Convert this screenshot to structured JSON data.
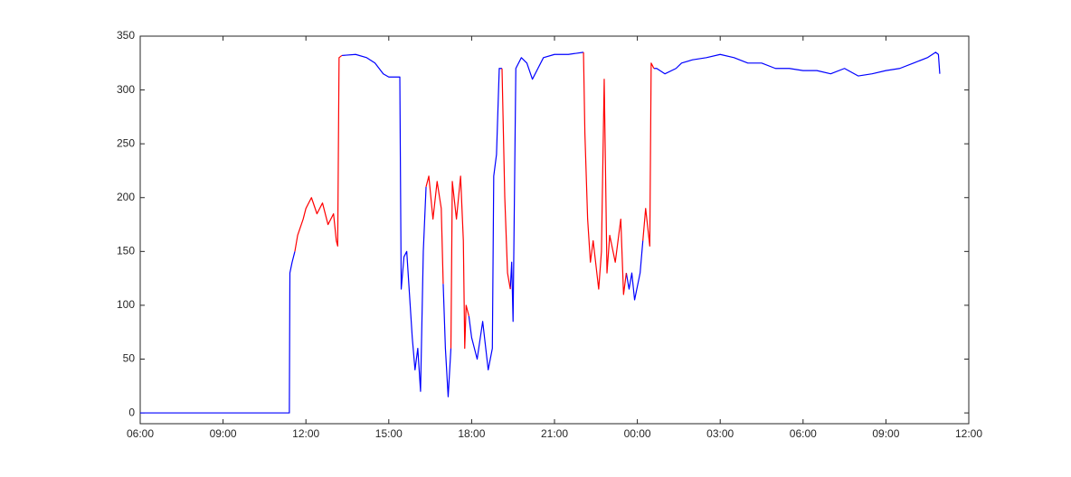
{
  "chart_data": {
    "type": "line",
    "x": [
      6,
      11.4,
      11.42,
      11.5,
      11.6,
      11.7,
      11.9,
      12,
      12.2,
      12.4,
      12.6,
      12.8,
      13,
      13.1,
      13.15,
      13.2,
      13.3,
      13.8,
      14.2,
      14.5,
      14.8,
      15,
      15.4,
      15.45,
      15.55,
      15.65,
      15.75,
      15.85,
      15.95,
      16.05,
      16.15,
      16.25,
      16.35,
      16.45,
      16.6,
      16.75,
      16.9,
      16.97,
      17.05,
      17.15,
      17.25,
      17.3,
      17.45,
      17.6,
      17.7,
      17.75,
      17.8,
      17.9,
      18,
      18.2,
      18.4,
      18.6,
      18.75,
      18.8,
      18.9,
      19,
      19.1,
      19.2,
      19.3,
      19.4,
      19.45,
      19.5,
      19.6,
      19.8,
      20,
      20.2,
      20.4,
      20.6,
      21,
      21.5,
      22.05,
      22.1,
      22.2,
      22.3,
      22.4,
      22.6,
      22.7,
      22.8,
      22.9,
      23,
      23.2,
      23.4,
      23.5,
      23.6,
      23.7,
      23.8,
      23.9,
      24.1,
      24.2,
      24.3,
      24.45,
      24.5,
      24.6,
      24.7,
      25,
      25.4,
      25.6,
      26,
      26.5,
      27,
      27.5,
      28,
      28.5,
      29,
      29.5,
      30,
      30.5,
      31,
      31.5,
      32,
      32.5,
      33,
      33.5,
      34,
      34.5,
      34.8,
      34.9,
      34.95
    ],
    "series": [
      {
        "color": "#0000ff",
        "values": [
          0,
          0,
          130,
          140,
          150,
          null,
          null,
          null,
          null,
          null,
          null,
          null,
          null,
          null,
          null,
          null,
          332,
          333,
          330,
          325,
          315,
          312,
          312,
          115,
          145,
          150,
          110,
          70,
          40,
          60,
          20,
          150,
          210,
          null,
          null,
          null,
          null,
          120,
          60,
          15,
          60,
          null,
          null,
          null,
          null,
          null,
          null,
          90,
          70,
          50,
          85,
          40,
          60,
          220,
          240,
          320,
          320,
          null,
          null,
          115,
          140,
          85,
          320,
          330,
          325,
          310,
          320,
          330,
          333,
          333,
          335,
          null,
          null,
          null,
          null,
          null,
          null,
          null,
          null,
          null,
          null,
          null,
          null,
          130,
          115,
          130,
          105,
          130,
          160,
          null,
          null,
          null,
          320,
          320,
          315,
          320,
          325,
          328,
          330,
          333,
          330,
          325,
          325,
          320,
          320,
          318,
          318,
          315,
          320,
          313,
          315,
          318,
          320,
          325,
          330,
          335,
          333,
          315
        ]
      },
      {
        "color": "#ff0000",
        "values": [
          null,
          null,
          null,
          null,
          150,
          165,
          180,
          190,
          200,
          185,
          195,
          175,
          185,
          160,
          155,
          330,
          332,
          null,
          null,
          null,
          null,
          null,
          null,
          null,
          null,
          null,
          null,
          null,
          null,
          null,
          null,
          null,
          210,
          220,
          180,
          215,
          190,
          120,
          null,
          null,
          60,
          215,
          180,
          220,
          160,
          60,
          100,
          90,
          null,
          null,
          null,
          null,
          null,
          null,
          null,
          null,
          320,
          200,
          130,
          115,
          null,
          null,
          null,
          null,
          null,
          null,
          null,
          null,
          null,
          null,
          335,
          260,
          180,
          140,
          160,
          115,
          150,
          310,
          130,
          165,
          140,
          180,
          110,
          130,
          null,
          null,
          null,
          null,
          160,
          190,
          155,
          325,
          320,
          null,
          null,
          null,
          null,
          null,
          null,
          null,
          null,
          null,
          null,
          null,
          null,
          null,
          null,
          null,
          null,
          null,
          null,
          null,
          null,
          null,
          null,
          null,
          null,
          null
        ]
      }
    ],
    "xlim": [
      6,
      36
    ],
    "xticks": [
      {
        "value": 6,
        "label": "06:00"
      },
      {
        "value": 9,
        "label": "09:00"
      },
      {
        "value": 12,
        "label": "12:00"
      },
      {
        "value": 15,
        "label": "15:00"
      },
      {
        "value": 18,
        "label": "18:00"
      },
      {
        "value": 21,
        "label": "21:00"
      },
      {
        "value": 24,
        "label": "00:00"
      },
      {
        "value": 27,
        "label": "03:00"
      },
      {
        "value": 30,
        "label": "06:00"
      },
      {
        "value": 33,
        "label": "09:00"
      },
      {
        "value": 36,
        "label": "12:00"
      }
    ],
    "ylim": [
      -10,
      350
    ],
    "yticks": [
      0,
      50,
      100,
      150,
      200,
      250,
      300,
      350
    ],
    "grid": false
  }
}
